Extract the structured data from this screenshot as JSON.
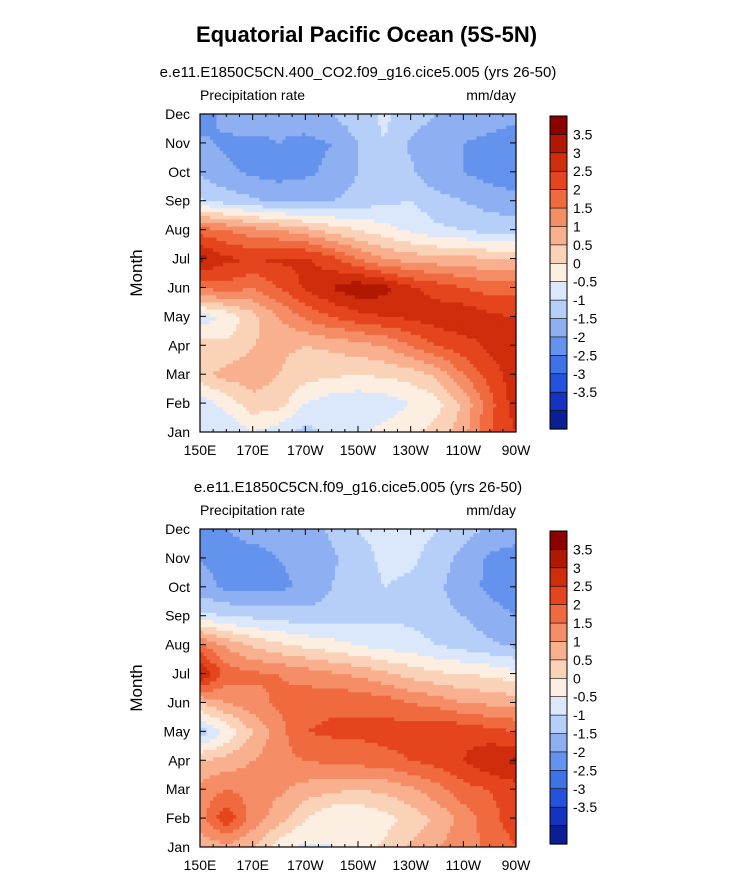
{
  "figure_title": "Equatorial Pacific Ocean (5S-5N)",
  "chart_data": [
    {
      "type": "heatmap",
      "title": "e.e11.E1850C5CN.400_CO2.f09_g16.cice5.005 (yrs 26-50)",
      "left_label": "Precipitation rate",
      "right_label": "mm/day",
      "ylabel": "Month",
      "xlabel": "",
      "x_ticks": [
        "150E",
        "170E",
        "170W",
        "150W",
        "130W",
        "110W",
        "90W"
      ],
      "x_tick_values": [
        150,
        170,
        190,
        210,
        230,
        250,
        270
      ],
      "xlim": [
        150,
        270
      ],
      "y_ticks": [
        "Jan",
        "Feb",
        "Mar",
        "Apr",
        "May",
        "Jun",
        "Jul",
        "Aug",
        "Sep",
        "Oct",
        "Nov",
        "Dec"
      ],
      "ylim": [
        1,
        12
      ],
      "grid": [
        [
          -1.0,
          -1.0,
          -0.5,
          -0.8,
          -1.2,
          -0.8,
          -0.6,
          -0.3,
          -0.1,
          0.2,
          0.8,
          2.0,
          2.5
        ],
        [
          -0.8,
          -0.3,
          0.3,
          0.2,
          -0.5,
          -0.8,
          -0.9,
          -0.8,
          -0.5,
          -0.2,
          0.6,
          1.8,
          2.8
        ],
        [
          0.3,
          0.7,
          0.8,
          0.5,
          0.2,
          0.1,
          0.0,
          0.1,
          0.2,
          0.6,
          1.5,
          2.2,
          2.8
        ],
        [
          0.2,
          0.1,
          0.5,
          0.6,
          0.5,
          0.6,
          0.8,
          1.0,
          1.5,
          2.0,
          2.3,
          2.6,
          3.0
        ],
        [
          -0.8,
          -0.4,
          0.3,
          1.0,
          1.6,
          2.0,
          2.3,
          2.5,
          2.6,
          2.8,
          2.9,
          2.6,
          2.5
        ],
        [
          1.5,
          1.8,
          1.5,
          2.0,
          2.6,
          3.0,
          3.4,
          3.2,
          2.6,
          2.3,
          2.0,
          1.8,
          1.8
        ],
        [
          3.2,
          2.6,
          2.5,
          2.6,
          2.6,
          2.2,
          1.5,
          1.0,
          0.8,
          0.7,
          0.7,
          0.5,
          0.5
        ],
        [
          1.8,
          1.5,
          1.2,
          1.0,
          0.7,
          0.3,
          0.0,
          -0.3,
          -0.6,
          -0.9,
          -1.0,
          -1.2,
          -1.2
        ],
        [
          -0.9,
          -1.2,
          -1.4,
          -1.6,
          -1.6,
          -1.5,
          -1.3,
          -1.1,
          -1.0,
          -1.3,
          -1.5,
          -1.7,
          -1.8
        ],
        [
          -1.6,
          -1.9,
          -2.1,
          -2.2,
          -2.1,
          -1.9,
          -1.5,
          -1.1,
          -1.4,
          -1.9,
          -2.0,
          -2.2,
          -2.4
        ],
        [
          -1.9,
          -2.1,
          -2.1,
          -2.0,
          -2.1,
          -2.0,
          -1.5,
          -1.0,
          -1.6,
          -1.9,
          -2.0,
          -2.2,
          -2.4
        ],
        [
          -2.3,
          -1.8,
          -1.7,
          -1.9,
          -1.8,
          -1.5,
          -1.2,
          -0.9,
          -1.2,
          -1.5,
          -1.6,
          -1.6,
          -1.8
        ]
      ]
    },
    {
      "type": "heatmap",
      "title": "e.e11.E1850C5CN.f09_g16.cice5.005 (yrs 26-50)",
      "left_label": "Precipitation rate",
      "right_label": "mm/day",
      "ylabel": "Month",
      "xlabel": "",
      "x_ticks": [
        "150E",
        "170E",
        "170W",
        "150W",
        "130W",
        "110W",
        "90W"
      ],
      "x_tick_values": [
        150,
        170,
        190,
        210,
        230,
        250,
        270
      ],
      "xlim": [
        150,
        270
      ],
      "y_ticks": [
        "Jan",
        "Feb",
        "Mar",
        "Apr",
        "May",
        "Jun",
        "Jul",
        "Aug",
        "Sep",
        "Oct",
        "Nov",
        "Dec"
      ],
      "ylim": [
        1,
        12
      ],
      "grid": [
        [
          0.6,
          0.8,
          0.5,
          -0.3,
          -0.6,
          -0.5,
          -0.3,
          0.1,
          0.6,
          1.0,
          1.3,
          1.6,
          2.0
        ],
        [
          1.3,
          2.4,
          1.3,
          0.7,
          0.0,
          -0.5,
          -0.5,
          -0.2,
          0.2,
          0.6,
          1.2,
          1.8,
          2.3
        ],
        [
          1.2,
          1.5,
          1.3,
          1.1,
          0.8,
          0.6,
          0.5,
          0.6,
          0.9,
          1.3,
          1.8,
          2.0,
          2.3
        ],
        [
          0.5,
          0.7,
          1.0,
          1.3,
          1.5,
          1.6,
          1.7,
          1.8,
          2.0,
          2.2,
          2.5,
          2.9,
          3.1
        ],
        [
          -1.3,
          -0.4,
          0.5,
          1.3,
          2.0,
          2.1,
          2.1,
          2.2,
          2.3,
          2.5,
          2.4,
          2.2,
          2.0
        ],
        [
          0.5,
          1.0,
          1.3,
          1.6,
          1.8,
          1.9,
          1.9,
          1.8,
          1.5,
          1.3,
          1.0,
          0.9,
          0.8
        ],
        [
          3.1,
          1.8,
          1.6,
          1.5,
          1.3,
          1.1,
          0.9,
          0.6,
          0.3,
          0.1,
          0.0,
          -0.1,
          -0.3
        ],
        [
          1.6,
          0.9,
          0.4,
          0.1,
          -0.1,
          -0.3,
          -0.5,
          -0.7,
          -0.8,
          -1.0,
          -1.2,
          -1.4,
          -1.6
        ],
        [
          -0.8,
          -1.0,
          -1.1,
          -1.2,
          -1.3,
          -1.3,
          -1.2,
          -1.1,
          -1.1,
          -1.3,
          -1.5,
          -1.8,
          -2.0
        ],
        [
          -1.8,
          -2.1,
          -2.2,
          -2.1,
          -1.9,
          -1.5,
          -1.2,
          -1.0,
          -1.1,
          -1.4,
          -1.8,
          -2.1,
          -2.3
        ],
        [
          -2.0,
          -2.2,
          -2.2,
          -2.0,
          -1.9,
          -1.6,
          -1.2,
          -0.9,
          -0.9,
          -1.2,
          -1.7,
          -2.1,
          -2.2
        ],
        [
          -2.4,
          -2.0,
          -1.8,
          -1.8,
          -1.8,
          -1.4,
          -1.0,
          -0.8,
          -0.8,
          -1.0,
          -1.3,
          -1.6,
          -1.8
        ]
      ]
    }
  ],
  "colorbar": {
    "labels": [
      "3.5",
      "3",
      "2.5",
      "2",
      "1.5",
      "1",
      "0.5",
      "0",
      "-0.5",
      "-1",
      "-1.5",
      "-2",
      "-2.5",
      "-3",
      "-3.5"
    ],
    "colors": [
      "#8c0000",
      "#b01802",
      "#cf2d0c",
      "#e5451c",
      "#f06a3f",
      "#f58d67",
      "#f8b08f",
      "#fad2b8",
      "#fdeee2",
      "#dbe8fb",
      "#b6cff8",
      "#8eb0f3",
      "#6493ee",
      "#3e73e8",
      "#2452dc",
      "#1434c0",
      "#0c1e94"
    ]
  }
}
